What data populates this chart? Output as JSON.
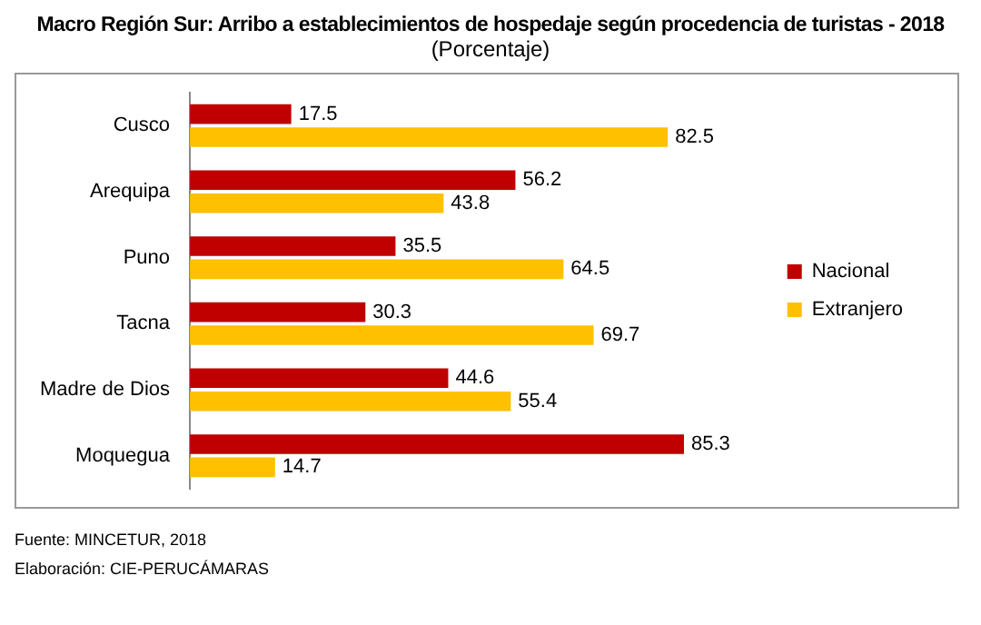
{
  "chart_data": {
    "type": "bar",
    "orientation": "horizontal",
    "title": "Macro Región Sur: Arribo a establecimientos de hospedaje según procedencia de turistas - 2018",
    "subtitle": "(Porcentaje)",
    "categories": [
      "Cusco",
      "Arequipa",
      "Puno",
      "Tacna",
      "Madre de Dios",
      "Moquegua"
    ],
    "series": [
      {
        "name": "Nacional",
        "color": "#c00000",
        "values": [
          17.5,
          56.2,
          35.5,
          30.3,
          44.6,
          85.3
        ]
      },
      {
        "name": "Extranjero",
        "color": "#ffc000",
        "values": [
          82.5,
          43.8,
          64.5,
          69.7,
          55.4,
          14.7
        ]
      }
    ],
    "data_labels": true,
    "grid": false,
    "legend": "right",
    "tick_labels": "y",
    "annotations": [
      "Fuente: MINCETUR, 2018",
      "Elaboración: CIE-PERUCÁMARAS"
    ]
  }
}
